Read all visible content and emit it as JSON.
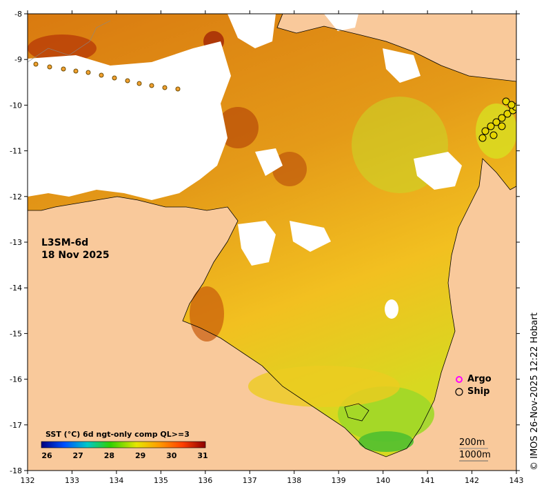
{
  "product": {
    "name": "L3SM-6d",
    "date": "18 Nov 2025"
  },
  "colorbar": {
    "title": "SST (°C) 6d ngt-only comp QL>=3",
    "ticks": [
      "26",
      "27",
      "28",
      "29",
      "30",
      "31"
    ],
    "colors": [
      "#00007f",
      "#0050ff",
      "#00c8c8",
      "#30d000",
      "#e6e600",
      "#ff9a00",
      "#ff4000",
      "#8b0000"
    ]
  },
  "legend": {
    "argo": "Argo",
    "argo_color": "#ff00ff",
    "ship": "Ship",
    "ship_color": "#000000"
  },
  "contours": {
    "shallow": "200m",
    "deep": "1000m"
  },
  "credit": "© IMOS 26-Nov-2025 12:22 Hobart",
  "axes": {
    "x_ticks": [
      "132",
      "133",
      "134",
      "135",
      "136",
      "137",
      "138",
      "139",
      "140",
      "141",
      "142",
      "143"
    ],
    "y_ticks": [
      "-8",
      "-9",
      "-10",
      "-11",
      "-12",
      "-13",
      "-14",
      "-15",
      "-16",
      "-17",
      "-18"
    ]
  },
  "colors": {
    "land": "#f9c99b",
    "no_data": "#ffffff",
    "sst_warm": "#e08a10",
    "sst_hot": "#b83c08",
    "sst_mid": "#f0b020",
    "sst_cool": "#c8e020",
    "sst_cooler": "#70d030"
  }
}
